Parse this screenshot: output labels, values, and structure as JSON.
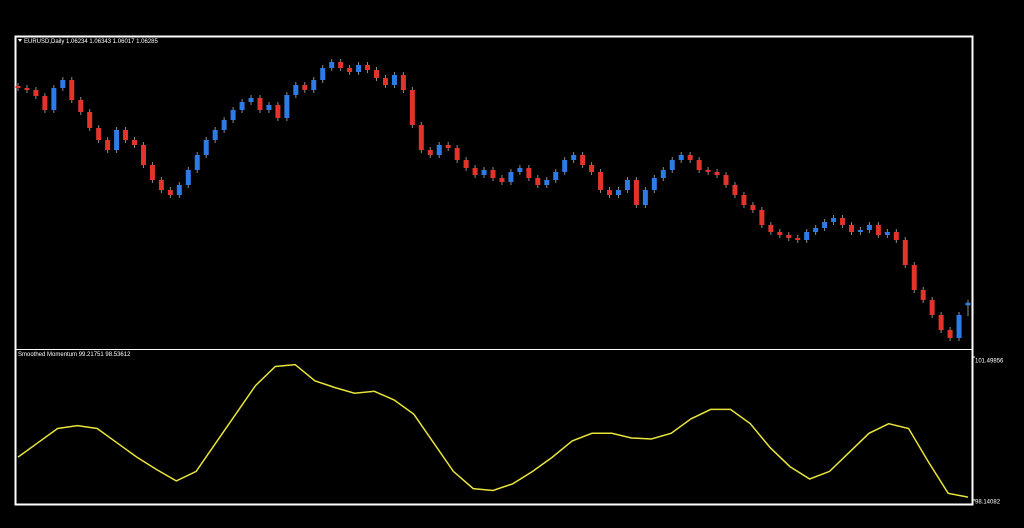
{
  "chart_data": [
    {
      "type": "candlestick",
      "title": "EURUSD,Daily",
      "up_color": "#2f7be6",
      "down_color": "#e3342c",
      "ylim": [
        1.0538,
        1.1162
      ],
      "candles": [
        [
          1.1062,
          1.1068,
          1.1052,
          1.1058
        ],
        [
          1.1058,
          1.1064,
          1.1048,
          1.1054
        ],
        [
          1.1054,
          1.106,
          1.1036,
          1.1042
        ],
        [
          1.1042,
          1.1048,
          1.1008,
          1.1014
        ],
        [
          1.1014,
          1.1064,
          1.1008,
          1.1058
        ],
        [
          1.1058,
          1.108,
          1.1052,
          1.1074
        ],
        [
          1.1074,
          1.108,
          1.1028,
          1.1034
        ],
        [
          1.1034,
          1.104,
          1.1004,
          1.101
        ],
        [
          1.101,
          1.1016,
          1.0972,
          1.0978
        ],
        [
          1.0978,
          1.0984,
          1.0948,
          1.0954
        ],
        [
          1.0954,
          1.096,
          1.0928,
          1.0934
        ],
        [
          1.0934,
          1.098,
          1.0928,
          1.0974
        ],
        [
          1.0974,
          1.098,
          1.0948,
          1.0954
        ],
        [
          1.0954,
          1.096,
          1.0938,
          1.0944
        ],
        [
          1.0944,
          1.095,
          1.0898,
          1.0904
        ],
        [
          1.0904,
          1.091,
          1.0868,
          1.0874
        ],
        [
          1.0874,
          1.088,
          1.0848,
          1.0854
        ],
        [
          1.0854,
          1.086,
          1.0838,
          1.0844
        ],
        [
          1.0844,
          1.087,
          1.0838,
          1.0864
        ],
        [
          1.0864,
          1.09,
          1.0858,
          1.0894
        ],
        [
          1.0894,
          1.093,
          1.0888,
          1.0924
        ],
        [
          1.0924,
          1.096,
          1.0918,
          1.0954
        ],
        [
          1.0954,
          1.098,
          1.0948,
          1.0974
        ],
        [
          1.0974,
          1.1,
          1.0968,
          1.0994
        ],
        [
          1.0994,
          1.102,
          1.0988,
          1.1014
        ],
        [
          1.1014,
          1.1036,
          1.1008,
          1.103
        ],
        [
          1.103,
          1.1044,
          1.1024,
          1.1038
        ],
        [
          1.1038,
          1.1044,
          1.1008,
          1.1014
        ],
        [
          1.1014,
          1.103,
          1.1008,
          1.1024
        ],
        [
          1.1024,
          1.103,
          1.0992,
          1.0998
        ],
        [
          1.0998,
          1.105,
          1.0992,
          1.1044
        ],
        [
          1.1044,
          1.107,
          1.1038,
          1.1064
        ],
        [
          1.1064,
          1.107,
          1.1048,
          1.1054
        ],
        [
          1.1054,
          1.108,
          1.1048,
          1.1074
        ],
        [
          1.1074,
          1.1104,
          1.1068,
          1.1098
        ],
        [
          1.1098,
          1.1116,
          1.1092,
          1.111
        ],
        [
          1.111,
          1.1116,
          1.1092,
          1.1098
        ],
        [
          1.1098,
          1.1104,
          1.1084,
          1.109
        ],
        [
          1.109,
          1.111,
          1.1084,
          1.1104
        ],
        [
          1.1104,
          1.111,
          1.1088,
          1.1094
        ],
        [
          1.1094,
          1.11,
          1.1072,
          1.1078
        ],
        [
          1.1078,
          1.1084,
          1.1058,
          1.1064
        ],
        [
          1.1064,
          1.109,
          1.1058,
          1.1084
        ],
        [
          1.1084,
          1.109,
          1.1048,
          1.1054
        ],
        [
          1.1054,
          1.106,
          1.0978,
          1.0984
        ],
        [
          1.0984,
          1.099,
          1.0928,
          1.0934
        ],
        [
          1.0934,
          1.094,
          1.0918,
          1.0924
        ],
        [
          1.0924,
          1.095,
          1.0918,
          1.0944
        ],
        [
          1.0944,
          1.095,
          1.0932,
          1.0938
        ],
        [
          1.0938,
          1.0944,
          1.0908,
          1.0914
        ],
        [
          1.0914,
          1.092,
          1.0892,
          1.0898
        ],
        [
          1.0898,
          1.0904,
          1.0878,
          1.0884
        ],
        [
          1.0884,
          1.09,
          1.0878,
          1.0894
        ],
        [
          1.0894,
          1.09,
          1.0872,
          1.0878
        ],
        [
          1.0878,
          1.0884,
          1.0864,
          1.087
        ],
        [
          1.087,
          1.0896,
          1.0864,
          1.089
        ],
        [
          1.089,
          1.0904,
          1.0884,
          1.0898
        ],
        [
          1.0898,
          1.0904,
          1.0872,
          1.0878
        ],
        [
          1.0878,
          1.0884,
          1.0858,
          1.0864
        ],
        [
          1.0864,
          1.088,
          1.0858,
          1.0874
        ],
        [
          1.0874,
          1.0896,
          1.0868,
          1.089
        ],
        [
          1.089,
          1.092,
          1.0884,
          1.0914
        ],
        [
          1.0914,
          1.093,
          1.0908,
          1.0924
        ],
        [
          1.0924,
          1.093,
          1.0898,
          1.0904
        ],
        [
          1.0904,
          1.091,
          1.0884,
          1.089
        ],
        [
          1.089,
          1.0896,
          1.0848,
          1.0854
        ],
        [
          1.0854,
          1.086,
          1.0838,
          1.0844
        ],
        [
          1.0844,
          1.086,
          1.0838,
          1.0854
        ],
        [
          1.0854,
          1.088,
          1.0848,
          1.0874
        ],
        [
          1.0874,
          1.088,
          1.0818,
          1.0824
        ],
        [
          1.0824,
          1.086,
          1.0818,
          1.0854
        ],
        [
          1.0854,
          1.0884,
          1.0848,
          1.0878
        ],
        [
          1.0878,
          1.09,
          1.0872,
          1.0894
        ],
        [
          1.0894,
          1.092,
          1.0888,
          1.0914
        ],
        [
          1.0914,
          1.093,
          1.0908,
          1.0924
        ],
        [
          1.0924,
          1.093,
          1.0908,
          1.0914
        ],
        [
          1.0914,
          1.092,
          1.0888,
          1.0894
        ],
        [
          1.0894,
          1.09,
          1.0884,
          1.089
        ],
        [
          1.089,
          1.0896,
          1.0878,
          1.0884
        ],
        [
          1.0884,
          1.089,
          1.0858,
          1.0864
        ],
        [
          1.0864,
          1.087,
          1.0838,
          1.0844
        ],
        [
          1.0844,
          1.085,
          1.0818,
          1.0824
        ],
        [
          1.0824,
          1.083,
          1.0808,
          1.0814
        ],
        [
          1.0814,
          1.082,
          1.0778,
          1.0784
        ],
        [
          1.0784,
          1.079,
          1.0764,
          1.077
        ],
        [
          1.077,
          1.0776,
          1.0758,
          1.0764
        ],
        [
          1.0764,
          1.077,
          1.0752,
          1.0758
        ],
        [
          1.0758,
          1.0764,
          1.0748,
          1.0754
        ],
        [
          1.0754,
          1.0776,
          1.0748,
          1.077
        ],
        [
          1.077,
          1.0784,
          1.0764,
          1.0778
        ],
        [
          1.0778,
          1.0796,
          1.0772,
          1.079
        ],
        [
          1.079,
          1.0804,
          1.0784,
          1.0798
        ],
        [
          1.0798,
          1.0804,
          1.0778,
          1.0784
        ],
        [
          1.0784,
          1.079,
          1.0764,
          1.077
        ],
        [
          1.077,
          1.078,
          1.0764,
          1.0774
        ],
        [
          1.0774,
          1.079,
          1.0768,
          1.0784
        ],
        [
          1.0784,
          1.079,
          1.0758,
          1.0764
        ],
        [
          1.0764,
          1.0776,
          1.0758,
          1.077
        ],
        [
          1.077,
          1.0776,
          1.0748,
          1.0754
        ],
        [
          1.0754,
          1.076,
          1.0698,
          1.0704
        ],
        [
          1.0704,
          1.071,
          1.0648,
          1.0654
        ],
        [
          1.0654,
          1.066,
          1.0628,
          1.0634
        ],
        [
          1.0634,
          1.064,
          1.0598,
          1.0604
        ],
        [
          1.0604,
          1.061,
          1.0568,
          1.0574
        ],
        [
          1.0574,
          1.058,
          1.0552,
          1.0558
        ],
        [
          1.0558,
          1.061,
          1.0552,
          1.0604
        ],
        [
          1.06234,
          1.06343,
          1.06017,
          1.06285
        ]
      ]
    },
    {
      "type": "line",
      "title": "Smoothed Momentum",
      "current_values": [
        99.21751,
        98.53612
      ],
      "color": "#e8e43a",
      "ylim": [
        98.14082,
        101.49856
      ],
      "yticks": [
        101.49856,
        98.14082
      ],
      "values": [
        99.148,
        99.484,
        99.82,
        99.887,
        99.82,
        99.484,
        99.148,
        98.857,
        98.589,
        98.812,
        99.484,
        100.156,
        100.827,
        101.275,
        101.32,
        100.939,
        100.782,
        100.648,
        100.693,
        100.491,
        100.156,
        99.484,
        98.812,
        98.409,
        98.365,
        98.521,
        98.812,
        99.148,
        99.529,
        99.708,
        99.708,
        99.596,
        99.573,
        99.708,
        100.044,
        100.267,
        100.267,
        99.932,
        99.372,
        98.924,
        98.633,
        98.812,
        99.26,
        99.708,
        99.932,
        99.82,
        99.036,
        98.298,
        98.208
      ]
    }
  ]
}
